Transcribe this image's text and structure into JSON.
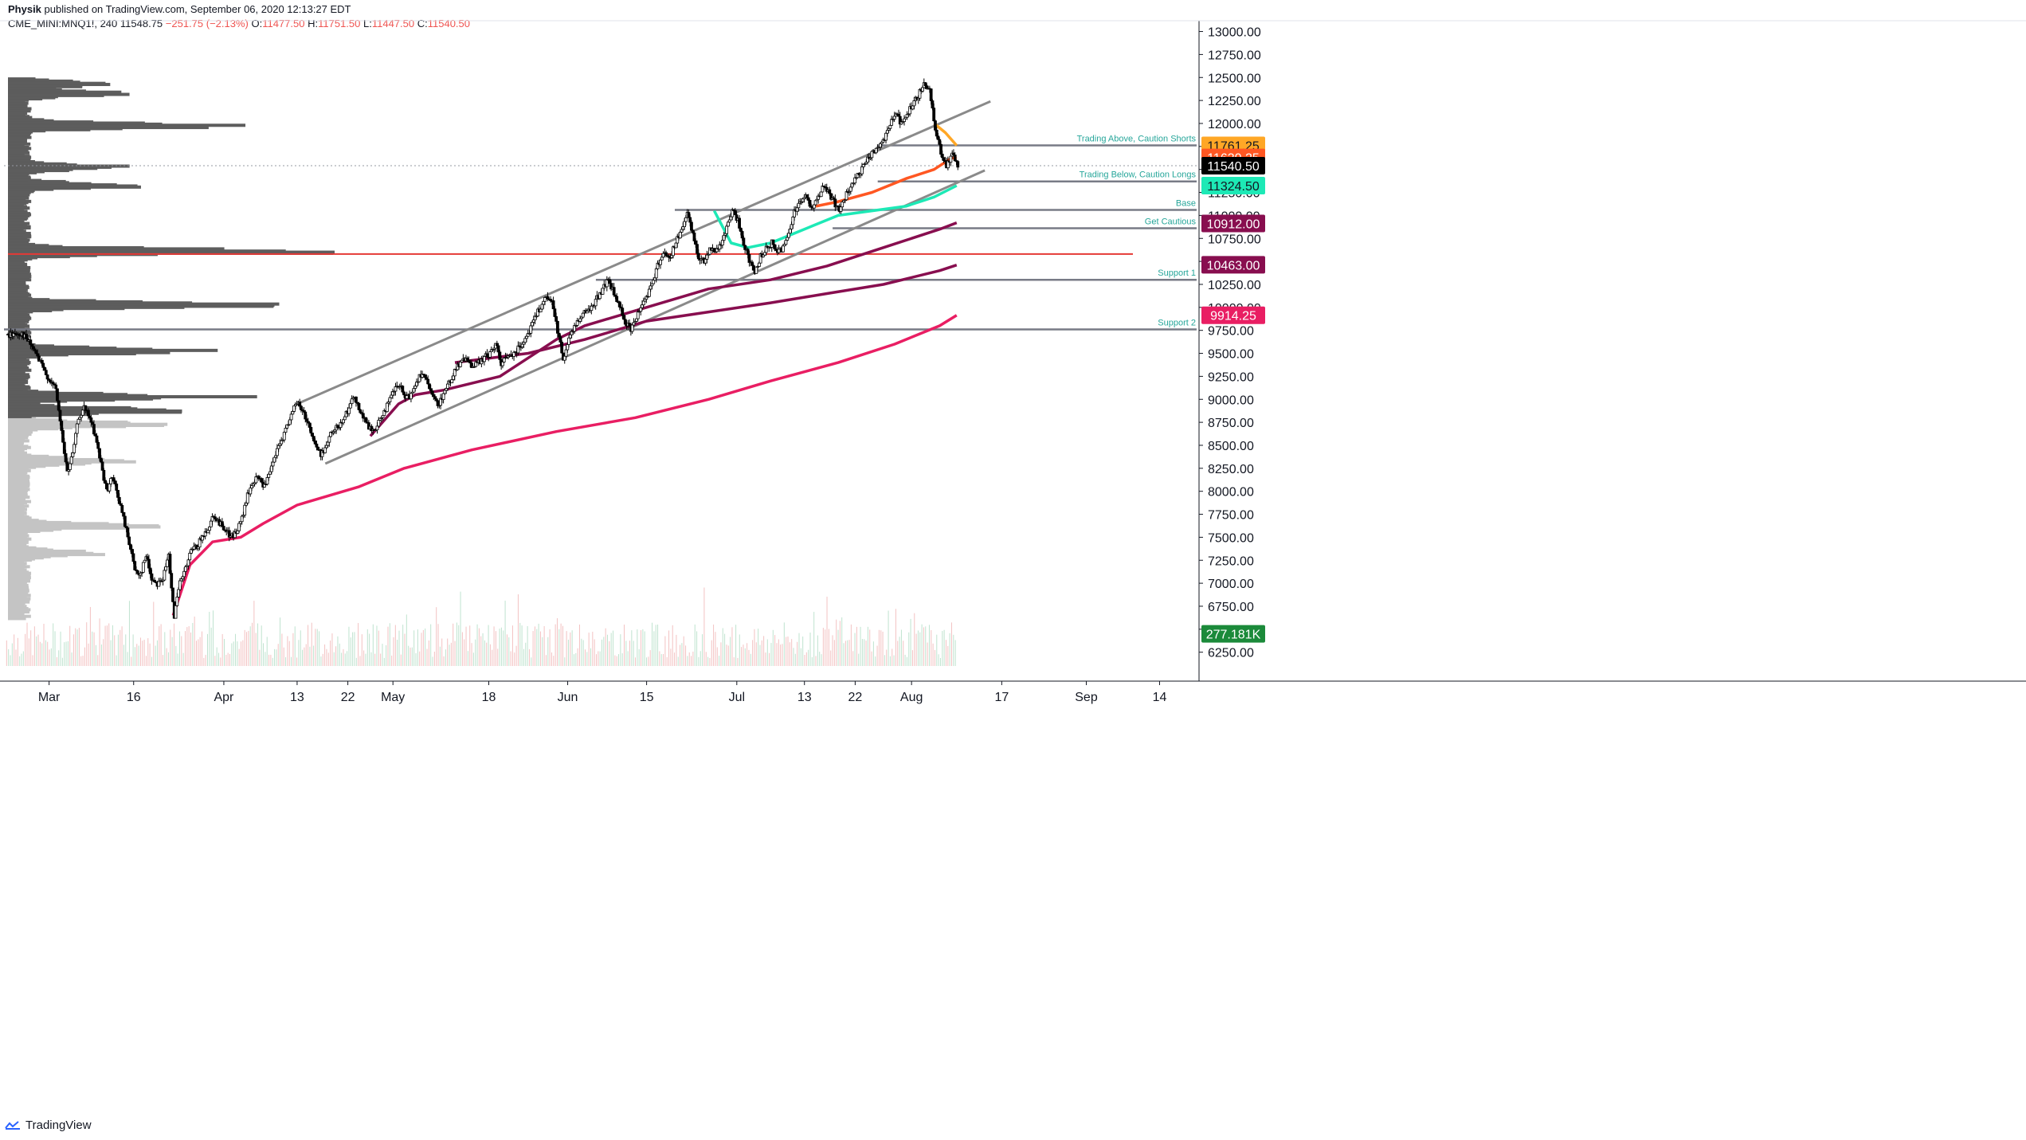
{
  "header": {
    "author": "Physik",
    "published": "published on TradingView.com, September 06, 2020 12:13:27 EDT",
    "symbol": "CME_MINI:MNQ1!, 240",
    "last": "11548.75",
    "change": "−251.75 (−2.13%)",
    "o_label": "O:",
    "o": "11477.50",
    "h_label": "H:",
    "h": "11751.50",
    "l_label": "L:",
    "l": "11447.50",
    "c_label": "C:",
    "c": "11540.50"
  },
  "footer": {
    "brand": "TradingView",
    "logo_icon": "tradingview-logo-icon"
  },
  "chart_data": {
    "type": "candlestick",
    "ylim": [
      6100,
      13100
    ],
    "y_ticks": [
      "13000.00",
      "12750.00",
      "12500.00",
      "12250.00",
      "12000.00",
      "11750.00",
      "11500.00",
      "11250.00",
      "11000.00",
      "10750.00",
      "10500.00",
      "10250.00",
      "10000.00",
      "9750.00",
      "9500.00",
      "9250.00",
      "9000.00",
      "8750.00",
      "8500.00",
      "8250.00",
      "8000.00",
      "7750.00",
      "7500.00",
      "7250.00",
      "7000.00",
      "6750.00",
      "6500.00",
      "6250.00"
    ],
    "x_ticks": [
      "Mar",
      "16",
      "Apr",
      "13",
      "22",
      "May",
      "18",
      "Jun",
      "15",
      "Jul",
      "13",
      "22",
      "Aug",
      "17",
      "Sep",
      "14"
    ],
    "x_tick_days": [
      0,
      15,
      31,
      44,
      53,
      61,
      78,
      92,
      106,
      122,
      134,
      143,
      153,
      169,
      184,
      197
    ],
    "x_day_range": [
      -8,
      204
    ],
    "price_path": [
      [
        -7.5,
        9700
      ],
      [
        -5,
        9720
      ],
      [
        -3,
        9550
      ],
      [
        -1,
        9300
      ],
      [
        1,
        9100
      ],
      [
        2,
        8650
      ],
      [
        3,
        8200
      ],
      [
        4,
        8400
      ],
      [
        5,
        8800
      ],
      [
        6,
        8900
      ],
      [
        7,
        8800
      ],
      [
        8,
        8600
      ],
      [
        9,
        8300
      ],
      [
        10,
        8000
      ],
      [
        11,
        8150
      ],
      [
        12,
        7950
      ],
      [
        13,
        7700
      ],
      [
        14,
        7450
      ],
      [
        15,
        7150
      ],
      [
        16,
        7100
      ],
      [
        17,
        7300
      ],
      [
        18,
        7050
      ],
      [
        19,
        7000
      ],
      [
        20,
        7050
      ],
      [
        21,
        7300
      ],
      [
        22,
        6650
      ],
      [
        23,
        7000
      ],
      [
        24,
        7150
      ],
      [
        25,
        7350
      ],
      [
        26,
        7400
      ],
      [
        27,
        7500
      ],
      [
        28,
        7600
      ],
      [
        29,
        7750
      ],
      [
        30,
        7650
      ],
      [
        31,
        7600
      ],
      [
        32,
        7500
      ],
      [
        33,
        7550
      ],
      [
        34,
        7700
      ],
      [
        35,
        7950
      ],
      [
        36,
        8100
      ],
      [
        37,
        8150
      ],
      [
        38,
        8050
      ],
      [
        39,
        8200
      ],
      [
        40,
        8400
      ],
      [
        41,
        8550
      ],
      [
        42,
        8700
      ],
      [
        43,
        8900
      ],
      [
        44,
        8950
      ],
      [
        45,
        8850
      ],
      [
        46,
        8700
      ],
      [
        47,
        8500
      ],
      [
        48,
        8400
      ],
      [
        49,
        8500
      ],
      [
        50,
        8650
      ],
      [
        51,
        8700
      ],
      [
        52,
        8800
      ],
      [
        53,
        8900
      ],
      [
        54,
        9050
      ],
      [
        55,
        8850
      ],
      [
        56,
        8750
      ],
      [
        57,
        8650
      ],
      [
        58,
        8700
      ],
      [
        59,
        8850
      ],
      [
        60,
        8950
      ],
      [
        61,
        9100
      ],
      [
        62,
        9150
      ],
      [
        63,
        9000
      ],
      [
        64,
        9050
      ],
      [
        65,
        9200
      ],
      [
        66,
        9300
      ],
      [
        67,
        9150
      ],
      [
        68,
        9000
      ],
      [
        69,
        8950
      ],
      [
        70,
        9100
      ],
      [
        71,
        9200
      ],
      [
        72,
        9350
      ],
      [
        73,
        9400
      ],
      [
        74,
        9450
      ],
      [
        75,
        9350
      ],
      [
        76,
        9400
      ],
      [
        77,
        9450
      ],
      [
        78,
        9500
      ],
      [
        79,
        9600
      ],
      [
        80,
        9400
      ],
      [
        81,
        9450
      ],
      [
        82,
        9500
      ],
      [
        83,
        9550
      ],
      [
        84,
        9650
      ],
      [
        85,
        9750
      ],
      [
        86,
        9900
      ],
      [
        87,
        10000
      ],
      [
        88,
        10100
      ],
      [
        89,
        10050
      ],
      [
        90,
        9750
      ],
      [
        91,
        9450
      ],
      [
        92,
        9650
      ],
      [
        93,
        9800
      ],
      [
        94,
        9900
      ],
      [
        95,
        9950
      ],
      [
        96,
        10000
      ],
      [
        97,
        10100
      ],
      [
        98,
        10200
      ],
      [
        99,
        10300
      ],
      [
        100,
        10150
      ],
      [
        101,
        10000
      ],
      [
        102,
        9850
      ],
      [
        103,
        9750
      ],
      [
        104,
        9900
      ],
      [
        105,
        10050
      ],
      [
        106,
        10150
      ],
      [
        107,
        10300
      ],
      [
        108,
        10500
      ],
      [
        109,
        10600
      ],
      [
        110,
        10550
      ],
      [
        111,
        10700
      ],
      [
        112,
        10850
      ],
      [
        113,
        11000
      ],
      [
        114,
        10800
      ],
      [
        115,
        10550
      ],
      [
        116,
        10500
      ],
      [
        117,
        10650
      ],
      [
        118,
        10600
      ],
      [
        119,
        10700
      ],
      [
        120,
        10850
      ],
      [
        121,
        11050
      ],
      [
        122,
        10950
      ],
      [
        123,
        10700
      ],
      [
        124,
        10500
      ],
      [
        125,
        10400
      ],
      [
        126,
        10550
      ],
      [
        127,
        10650
      ],
      [
        128,
        10700
      ],
      [
        129,
        10600
      ],
      [
        130,
        10650
      ],
      [
        131,
        10800
      ],
      [
        132,
        11050
      ],
      [
        133,
        11150
      ],
      [
        134,
        11200
      ],
      [
        135,
        11100
      ],
      [
        136,
        11150
      ],
      [
        137,
        11300
      ],
      [
        138,
        11250
      ],
      [
        139,
        11150
      ],
      [
        140,
        11050
      ],
      [
        141,
        11200
      ],
      [
        142,
        11300
      ],
      [
        143,
        11400
      ],
      [
        144,
        11500
      ],
      [
        145,
        11600
      ],
      [
        146,
        11700
      ],
      [
        147,
        11750
      ],
      [
        148,
        11850
      ],
      [
        149,
        12000
      ],
      [
        150,
        12100
      ],
      [
        151,
        12000
      ],
      [
        152,
        12100
      ],
      [
        153,
        12200
      ],
      [
        154,
        12300
      ],
      [
        155,
        12450
      ],
      [
        156,
        12350
      ],
      [
        157,
        11950
      ],
      [
        158,
        11700
      ],
      [
        159,
        11550
      ],
      [
        160,
        11650
      ],
      [
        161,
        11540
      ]
    ],
    "series": [
      {
        "color": "#880e4f",
        "points": [
          [
            57,
            8600
          ],
          [
            62,
            8950
          ],
          [
            65,
            9050
          ],
          [
            70,
            9100
          ],
          [
            80,
            9250
          ],
          [
            90,
            9650
          ],
          [
            95,
            9800
          ],
          [
            106,
            10000
          ],
          [
            117,
            10200
          ],
          [
            128,
            10300
          ],
          [
            138,
            10450
          ],
          [
            148,
            10650
          ],
          [
            158,
            10850
          ],
          [
            161,
            10920
          ]
        ]
      },
      {
        "color": "#880e4f",
        "points": [
          [
            72,
            9400
          ],
          [
            85,
            9500
          ],
          [
            95,
            9650
          ],
          [
            106,
            9850
          ],
          [
            117,
            9950
          ],
          [
            128,
            10050
          ],
          [
            138,
            10150
          ],
          [
            148,
            10250
          ],
          [
            158,
            10400
          ],
          [
            161,
            10460
          ]
        ]
      },
      {
        "color": "#e91e63",
        "points": [
          [
            22,
            6650
          ],
          [
            25,
            7200
          ],
          [
            29,
            7450
          ],
          [
            34,
            7500
          ],
          [
            38,
            7650
          ],
          [
            44,
            7850
          ],
          [
            55,
            8050
          ],
          [
            63,
            8250
          ],
          [
            75,
            8450
          ],
          [
            90,
            8650
          ],
          [
            104,
            8800
          ],
          [
            117,
            9000
          ],
          [
            128,
            9200
          ],
          [
            140,
            9400
          ],
          [
            150,
            9600
          ],
          [
            158,
            9800
          ],
          [
            161,
            9914
          ]
        ]
      },
      {
        "color": "#1de9b6",
        "points": [
          [
            118,
            11050
          ],
          [
            121,
            10700
          ],
          [
            124,
            10650
          ],
          [
            128,
            10700
          ],
          [
            132,
            10800
          ],
          [
            136,
            10900
          ],
          [
            140,
            11000
          ],
          [
            146,
            11050
          ],
          [
            152,
            11100
          ],
          [
            157,
            11200
          ],
          [
            161,
            11324
          ]
        ]
      },
      {
        "color": "#ff5722",
        "points": [
          [
            136,
            11100
          ],
          [
            140,
            11150
          ],
          [
            146,
            11250
          ],
          [
            152,
            11400
          ],
          [
            157,
            11500
          ],
          [
            160,
            11620
          ],
          [
            161,
            11630
          ]
        ]
      },
      {
        "color": "#ffa726",
        "points": [
          [
            157,
            12000
          ],
          [
            159,
            11900
          ],
          [
            161,
            11761
          ]
        ]
      }
    ],
    "trendlines": [
      {
        "from": [
          44,
          8950
        ],
        "to": [
          167,
          12240
        ]
      },
      {
        "from": [
          49,
          8300
        ],
        "to": [
          166,
          11490
        ]
      }
    ],
    "levels": [
      {
        "value": 11761.25,
        "label": "Trading Above, Caution Shorts",
        "from_day": 147
      },
      {
        "value": 11370,
        "label": "Trading Below, Caution Longs",
        "from_day": 147
      },
      {
        "value": 11060,
        "label": "Base",
        "from_day": 111
      },
      {
        "value": 10860,
        "label": "Get Cautious",
        "from_day": 139
      },
      {
        "value": 10300,
        "label": "Support 1",
        "from_day": 97
      },
      {
        "value": 9760,
        "label": "Support 2",
        "from_day": -8
      }
    ],
    "poc_level": 10580,
    "current_price_line": 11540.5,
    "price_badges": [
      {
        "value": "11761.25",
        "num": 11761.25,
        "bg": "#ffa726",
        "fg": "#131722"
      },
      {
        "value": "11630.25",
        "num": 11630.25,
        "bg": "#ff5722",
        "fg": "#ffffff"
      },
      {
        "value": "11540.50",
        "num": 11540.5,
        "bg": "#000000",
        "fg": "#ffffff"
      },
      {
        "value": "11324.50",
        "num": 11324.5,
        "bg": "#1de9b6",
        "fg": "#131722"
      },
      {
        "value": "10912.00",
        "num": 10912,
        "bg": "#880e4f",
        "fg": "#ffffff"
      },
      {
        "value": "10463.00",
        "num": 10463,
        "bg": "#880e4f",
        "fg": "#ffffff"
      },
      {
        "value": "9914.25",
        "num": 9914.25,
        "bg": "#e91e63",
        "fg": "#ffffff"
      },
      {
        "value": "277.181K",
        "num": 6450,
        "bg": "#1b8a3a",
        "fg": "#ffffff"
      }
    ],
    "volume_profile": {
      "peaks": [
        [
          12400,
          0.25
        ],
        [
          12300,
          0.3
        ],
        [
          11950,
          0.6
        ],
        [
          11500,
          0.28
        ],
        [
          11300,
          0.35
        ],
        [
          10580,
          1.0
        ],
        [
          10000,
          0.78
        ],
        [
          9500,
          0.55
        ],
        [
          9000,
          0.58
        ],
        [
          8850,
          0.52
        ],
        [
          8700,
          0.45
        ],
        [
          8300,
          0.35
        ],
        [
          7600,
          0.4
        ],
        [
          7300,
          0.25
        ]
      ],
      "value_area_split": 8780
    }
  }
}
